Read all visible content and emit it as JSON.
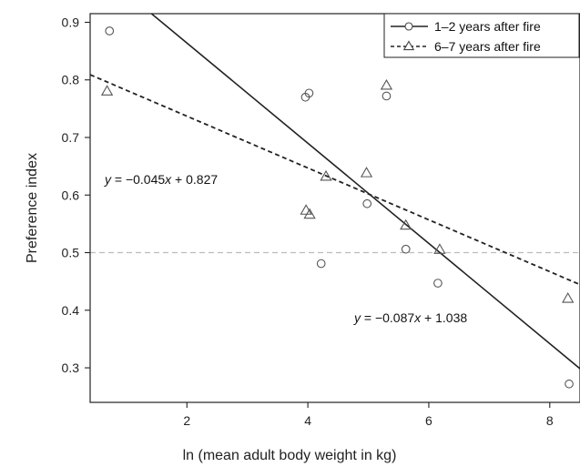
{
  "chart_data": {
    "type": "scatter",
    "title": "",
    "xlabel": "ln (mean adult body weight in kg)",
    "ylabel": "Preference index",
    "xlim": [
      0.4,
      8.5
    ],
    "ylim": [
      0.24,
      0.915
    ],
    "xticks": [
      2,
      4,
      6,
      8
    ],
    "xtick_labels": [
      "2",
      "4",
      "6",
      "8"
    ],
    "yticks": [
      0.3,
      0.4,
      0.5,
      0.6,
      0.7,
      0.8,
      0.9
    ],
    "ytick_labels": [
      "0.3",
      "0.4",
      "0.5",
      "0.6",
      "0.7",
      "0.8",
      "0.9"
    ],
    "grid": false,
    "legend_position": "top-right",
    "reference_line": {
      "y": 0.5,
      "style": "dashed",
      "color": "#bdbdbd"
    },
    "series": [
      {
        "name": "1–2 years after fire",
        "marker": "circle",
        "line_style": "solid",
        "x": [
          0.72,
          3.96,
          4.02,
          4.22,
          4.98,
          5.3,
          5.62,
          6.15,
          8.32
        ],
        "y": [
          0.885,
          0.77,
          0.777,
          0.481,
          0.585,
          0.772,
          0.506,
          0.447,
          0.272
        ],
        "fit": {
          "slope": -0.087,
          "intercept": 1.038,
          "x_range": [
            1.15,
            8.5
          ]
        },
        "equation": "y = −0.087x + 1.038"
      },
      {
        "name": "6–7 years after fire",
        "marker": "triangle",
        "line_style": "dashed",
        "x": [
          0.68,
          3.97,
          4.03,
          4.3,
          4.97,
          5.3,
          5.62,
          6.18,
          8.3
        ],
        "y": [
          0.78,
          0.573,
          0.566,
          0.632,
          0.638,
          0.79,
          0.547,
          0.505,
          0.42
        ],
        "fit": {
          "slope": -0.045,
          "intercept": 0.827,
          "x_range": [
            0.4,
            8.5
          ]
        },
        "equation": "y = −0.045x + 0.827"
      }
    ]
  }
}
